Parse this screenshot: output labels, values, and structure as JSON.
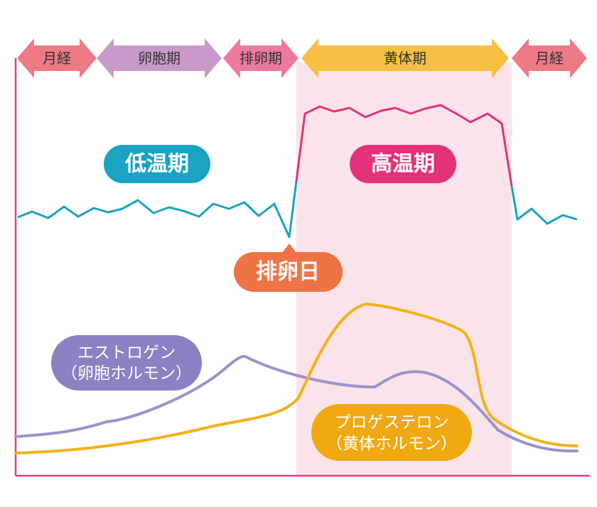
{
  "colors": {
    "menstruation": "#ee7a86",
    "follicular": "#c99ac9",
    "ovulation": "#ee7a9a",
    "luteal": "#f7c043",
    "luteal_band": "#fbe3ea",
    "axis": "#e33d78",
    "low_temp": "#1aa3c2",
    "high_temp": "#e3327a",
    "ovulation_day": "#ef7445",
    "estrogen": "#9b93cc",
    "estrogen_label": "#8a82c2",
    "progesterone": "#f3b21a",
    "progesterone_label": "#f0a912"
  },
  "phases": [
    {
      "label": "月経"
    },
    {
      "label": "卵胞期"
    },
    {
      "label": "排卵期"
    },
    {
      "label": "黄体期"
    },
    {
      "label": "月経"
    }
  ],
  "labels": {
    "low_temp": "低温期",
    "high_temp": "高温期",
    "ovulation_day": "排卵日",
    "estrogen_line1": "エストロゲン",
    "estrogen_line2": "（卵胞ホルモン）",
    "progesterone_line1": "プロゲステロン",
    "progesterone_line2": "（黄体ホルモン）"
  }
}
